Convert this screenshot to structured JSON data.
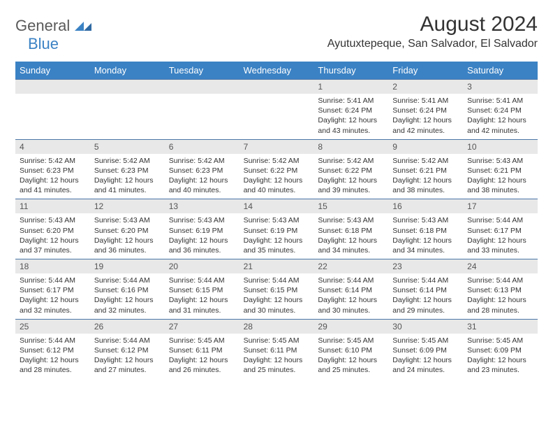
{
  "logo": {
    "part1": "General",
    "part2": "Blue"
  },
  "header": {
    "title": "August 2024",
    "location": "Ayutuxtepeque, San Salvador, El Salvador"
  },
  "colors": {
    "header_bg": "#3b82c4",
    "header_text": "#ffffff",
    "daynum_bg": "#e8e8e8",
    "rule": "#4a76a8",
    "logo_gray": "#5a5a5a",
    "logo_blue": "#3b82c4"
  },
  "dow": [
    "Sunday",
    "Monday",
    "Tuesday",
    "Wednesday",
    "Thursday",
    "Friday",
    "Saturday"
  ],
  "weeks": [
    [
      {
        "n": "",
        "sr": "",
        "ss": "",
        "dl": ""
      },
      {
        "n": "",
        "sr": "",
        "ss": "",
        "dl": ""
      },
      {
        "n": "",
        "sr": "",
        "ss": "",
        "dl": ""
      },
      {
        "n": "",
        "sr": "",
        "ss": "",
        "dl": ""
      },
      {
        "n": "1",
        "sr": "5:41 AM",
        "ss": "6:24 PM",
        "dl": "12 hours and 43 minutes."
      },
      {
        "n": "2",
        "sr": "5:41 AM",
        "ss": "6:24 PM",
        "dl": "12 hours and 42 minutes."
      },
      {
        "n": "3",
        "sr": "5:41 AM",
        "ss": "6:24 PM",
        "dl": "12 hours and 42 minutes."
      }
    ],
    [
      {
        "n": "4",
        "sr": "5:42 AM",
        "ss": "6:23 PM",
        "dl": "12 hours and 41 minutes."
      },
      {
        "n": "5",
        "sr": "5:42 AM",
        "ss": "6:23 PM",
        "dl": "12 hours and 41 minutes."
      },
      {
        "n": "6",
        "sr": "5:42 AM",
        "ss": "6:23 PM",
        "dl": "12 hours and 40 minutes."
      },
      {
        "n": "7",
        "sr": "5:42 AM",
        "ss": "6:22 PM",
        "dl": "12 hours and 40 minutes."
      },
      {
        "n": "8",
        "sr": "5:42 AM",
        "ss": "6:22 PM",
        "dl": "12 hours and 39 minutes."
      },
      {
        "n": "9",
        "sr": "5:42 AM",
        "ss": "6:21 PM",
        "dl": "12 hours and 38 minutes."
      },
      {
        "n": "10",
        "sr": "5:43 AM",
        "ss": "6:21 PM",
        "dl": "12 hours and 38 minutes."
      }
    ],
    [
      {
        "n": "11",
        "sr": "5:43 AM",
        "ss": "6:20 PM",
        "dl": "12 hours and 37 minutes."
      },
      {
        "n": "12",
        "sr": "5:43 AM",
        "ss": "6:20 PM",
        "dl": "12 hours and 36 minutes."
      },
      {
        "n": "13",
        "sr": "5:43 AM",
        "ss": "6:19 PM",
        "dl": "12 hours and 36 minutes."
      },
      {
        "n": "14",
        "sr": "5:43 AM",
        "ss": "6:19 PM",
        "dl": "12 hours and 35 minutes."
      },
      {
        "n": "15",
        "sr": "5:43 AM",
        "ss": "6:18 PM",
        "dl": "12 hours and 34 minutes."
      },
      {
        "n": "16",
        "sr": "5:43 AM",
        "ss": "6:18 PM",
        "dl": "12 hours and 34 minutes."
      },
      {
        "n": "17",
        "sr": "5:44 AM",
        "ss": "6:17 PM",
        "dl": "12 hours and 33 minutes."
      }
    ],
    [
      {
        "n": "18",
        "sr": "5:44 AM",
        "ss": "6:17 PM",
        "dl": "12 hours and 32 minutes."
      },
      {
        "n": "19",
        "sr": "5:44 AM",
        "ss": "6:16 PM",
        "dl": "12 hours and 32 minutes."
      },
      {
        "n": "20",
        "sr": "5:44 AM",
        "ss": "6:15 PM",
        "dl": "12 hours and 31 minutes."
      },
      {
        "n": "21",
        "sr": "5:44 AM",
        "ss": "6:15 PM",
        "dl": "12 hours and 30 minutes."
      },
      {
        "n": "22",
        "sr": "5:44 AM",
        "ss": "6:14 PM",
        "dl": "12 hours and 30 minutes."
      },
      {
        "n": "23",
        "sr": "5:44 AM",
        "ss": "6:14 PM",
        "dl": "12 hours and 29 minutes."
      },
      {
        "n": "24",
        "sr": "5:44 AM",
        "ss": "6:13 PM",
        "dl": "12 hours and 28 minutes."
      }
    ],
    [
      {
        "n": "25",
        "sr": "5:44 AM",
        "ss": "6:12 PM",
        "dl": "12 hours and 28 minutes."
      },
      {
        "n": "26",
        "sr": "5:44 AM",
        "ss": "6:12 PM",
        "dl": "12 hours and 27 minutes."
      },
      {
        "n": "27",
        "sr": "5:45 AM",
        "ss": "6:11 PM",
        "dl": "12 hours and 26 minutes."
      },
      {
        "n": "28",
        "sr": "5:45 AM",
        "ss": "6:11 PM",
        "dl": "12 hours and 25 minutes."
      },
      {
        "n": "29",
        "sr": "5:45 AM",
        "ss": "6:10 PM",
        "dl": "12 hours and 25 minutes."
      },
      {
        "n": "30",
        "sr": "5:45 AM",
        "ss": "6:09 PM",
        "dl": "12 hours and 24 minutes."
      },
      {
        "n": "31",
        "sr": "5:45 AM",
        "ss": "6:09 PM",
        "dl": "12 hours and 23 minutes."
      }
    ]
  ],
  "labels": {
    "sunrise": "Sunrise: ",
    "sunset": "Sunset: ",
    "daylight": "Daylight: "
  }
}
